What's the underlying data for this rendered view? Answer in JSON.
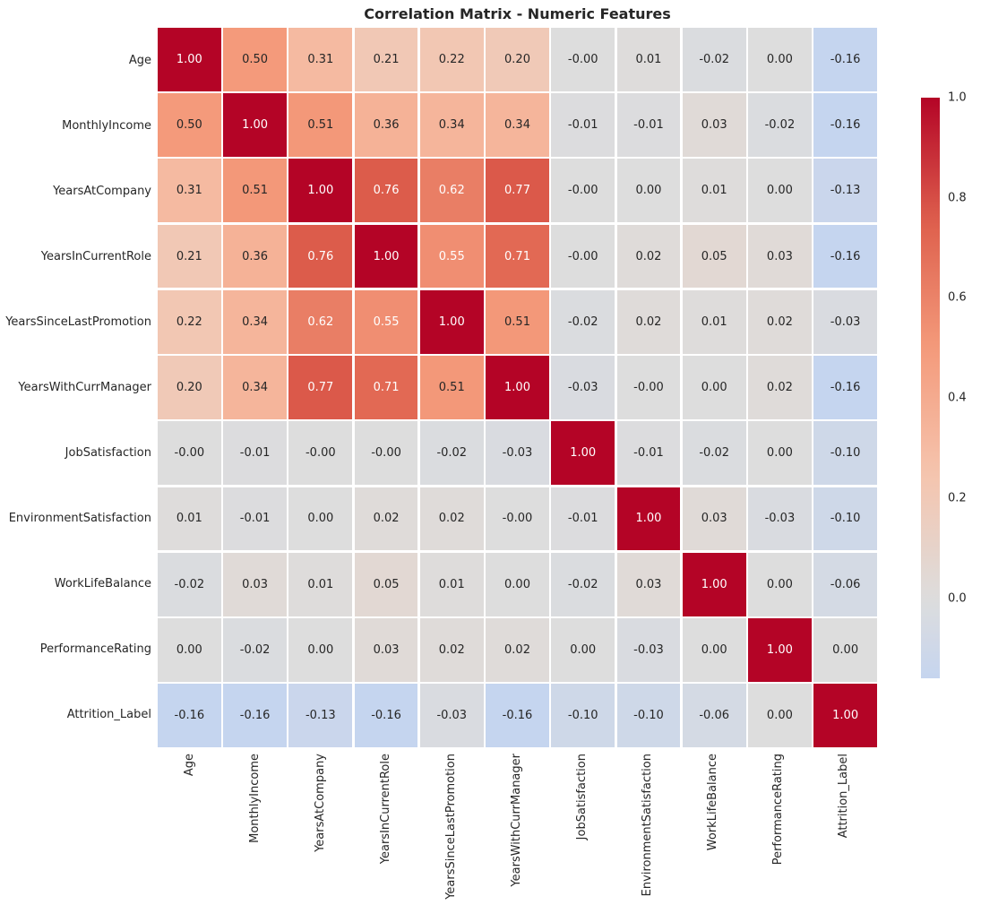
{
  "title": "Correlation Matrix - Numeric Features",
  "chart_data": {
    "type": "heatmap",
    "categories": [
      "Age",
      "MonthlyIncome",
      "YearsAtCompany",
      "YearsInCurrentRole",
      "YearsSinceLastPromotion",
      "YearsWithCurrManager",
      "JobSatisfaction",
      "EnvironmentSatisfaction",
      "WorkLifeBalance",
      "PerformanceRating",
      "Attrition_Label"
    ],
    "matrix": [
      [
        "1.00",
        "0.50",
        "0.31",
        "0.21",
        "0.22",
        "0.20",
        "-0.00",
        "0.01",
        "-0.02",
        "0.00",
        "-0.16"
      ],
      [
        "0.50",
        "1.00",
        "0.51",
        "0.36",
        "0.34",
        "0.34",
        "-0.01",
        "-0.01",
        "0.03",
        "-0.02",
        "-0.16"
      ],
      [
        "0.31",
        "0.51",
        "1.00",
        "0.76",
        "0.62",
        "0.77",
        "-0.00",
        "0.00",
        "0.01",
        "0.00",
        "-0.13"
      ],
      [
        "0.21",
        "0.36",
        "0.76",
        "1.00",
        "0.55",
        "0.71",
        "-0.00",
        "0.02",
        "0.05",
        "0.03",
        "-0.16"
      ],
      [
        "0.22",
        "0.34",
        "0.62",
        "0.55",
        "1.00",
        "0.51",
        "-0.02",
        "0.02",
        "0.01",
        "0.02",
        "-0.03"
      ],
      [
        "0.20",
        "0.34",
        "0.77",
        "0.71",
        "0.51",
        "1.00",
        "-0.03",
        "-0.00",
        "0.00",
        "0.02",
        "-0.16"
      ],
      [
        "-0.00",
        "-0.01",
        "-0.00",
        "-0.00",
        "-0.02",
        "-0.03",
        "1.00",
        "-0.01",
        "-0.02",
        "0.00",
        "-0.10"
      ],
      [
        "0.01",
        "-0.01",
        "0.00",
        "0.02",
        "0.02",
        "-0.00",
        "-0.01",
        "1.00",
        "0.03",
        "-0.03",
        "-0.10"
      ],
      [
        "-0.02",
        "0.03",
        "0.01",
        "0.05",
        "0.01",
        "0.00",
        "-0.02",
        "0.03",
        "1.00",
        "0.00",
        "-0.06"
      ],
      [
        "0.00",
        "-0.02",
        "0.00",
        "0.03",
        "0.02",
        "0.02",
        "0.00",
        "-0.03",
        "0.00",
        "1.00",
        "0.00"
      ],
      [
        "-0.16",
        "-0.16",
        "-0.13",
        "-0.16",
        "-0.03",
        "-0.16",
        "-0.10",
        "-0.10",
        "-0.06",
        "0.00",
        "1.00"
      ]
    ],
    "colormap": "coolwarm",
    "vmin": -0.16,
    "vmax": 1.0,
    "center": 0,
    "colorbar_ticks": [
      "1.0",
      "0.8",
      "0.6",
      "0.4",
      "0.2",
      "0.0"
    ],
    "legend_position": "right",
    "grid": false
  },
  "colors": {
    "max_red": "#b40426",
    "mid_neutral": "#dddddd",
    "min_blue_shown": "#c5d5ef",
    "annotation_dark": "#262626",
    "annotation_light": "#ffffff",
    "background": "#ffffff"
  }
}
